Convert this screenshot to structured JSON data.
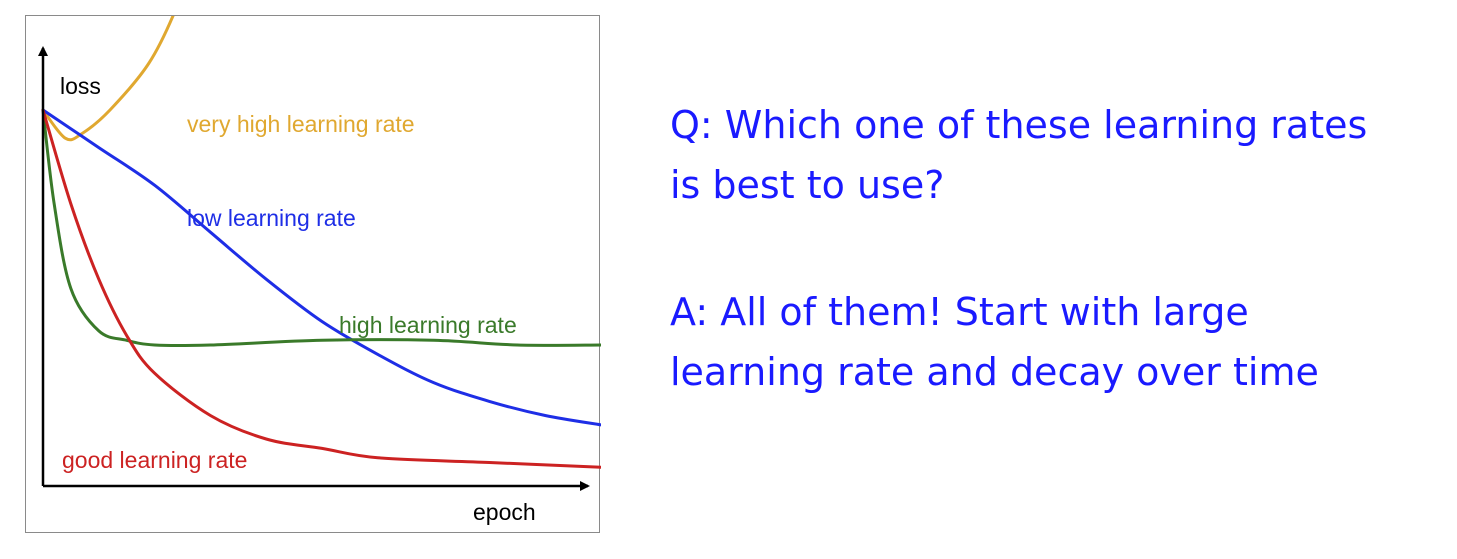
{
  "chart_data": {
    "type": "line",
    "xlabel": "epoch",
    "ylabel": "loss",
    "series": [
      {
        "name": "very high learning rate",
        "color": "#e0a830",
        "x": [
          0,
          0.04,
          0.07,
          0.12,
          0.19,
          0.24,
          0.27
        ],
        "y": [
          0.8,
          0.74,
          0.75,
          0.8,
          0.9,
          1.02,
          1.13
        ]
      },
      {
        "name": "low learning rate",
        "color": "#1e2ee6",
        "x": [
          0,
          0.1,
          0.2,
          0.3,
          0.4,
          0.5,
          0.6,
          0.7,
          0.8,
          0.9,
          1.0
        ],
        "y": [
          0.8,
          0.72,
          0.64,
          0.54,
          0.44,
          0.35,
          0.28,
          0.22,
          0.18,
          0.15,
          0.13
        ]
      },
      {
        "name": "high learning rate",
        "color": "#3a7a2a",
        "x": [
          0,
          0.02,
          0.05,
          0.1,
          0.15,
          0.2,
          0.3,
          0.5,
          0.7,
          0.85,
          1.0
        ],
        "y": [
          0.8,
          0.6,
          0.42,
          0.33,
          0.31,
          0.3,
          0.3,
          0.31,
          0.31,
          0.3,
          0.3
        ]
      },
      {
        "name": "good learning rate",
        "color": "#cc2222",
        "x": [
          0,
          0.05,
          0.1,
          0.15,
          0.2,
          0.3,
          0.4,
          0.5,
          0.6,
          0.8,
          1.0
        ],
        "y": [
          0.8,
          0.6,
          0.44,
          0.32,
          0.24,
          0.15,
          0.1,
          0.08,
          0.06,
          0.05,
          0.04
        ]
      }
    ],
    "xlim": [
      0,
      1.0
    ],
    "ylim": [
      0,
      1.0
    ],
    "grid": false,
    "annotations": [
      "very high learning rate",
      "low learning rate",
      "high learning rate",
      "good learning rate"
    ]
  },
  "qa": {
    "question_line1": "Q: Which one of these learning rates",
    "question_line2": "is best to use?",
    "answer_line1": "A: All of them! Start with large",
    "answer_line2": "learning rate and decay over time"
  }
}
